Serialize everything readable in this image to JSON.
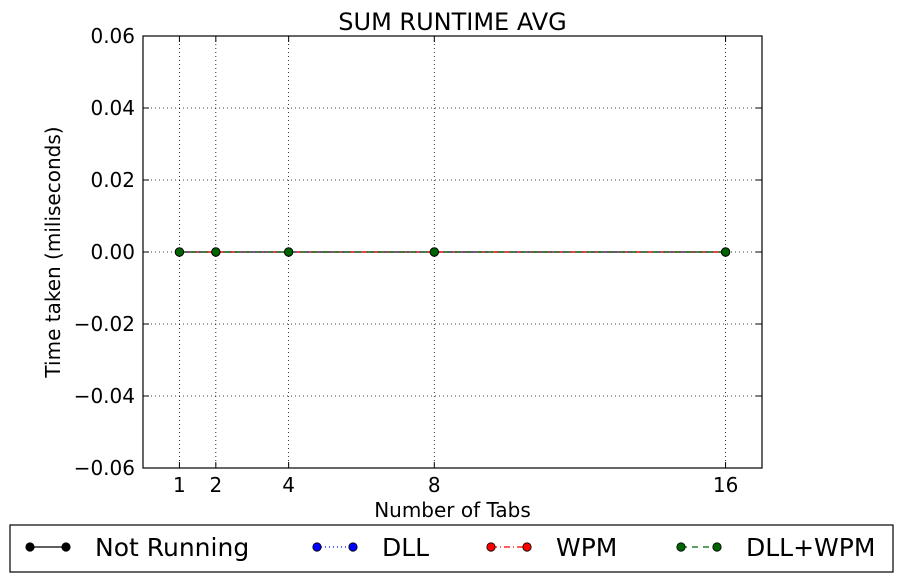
{
  "chart_data": {
    "type": "line",
    "title": "SUM RUNTIME AVG",
    "xlabel": "Number of Tabs",
    "ylabel": "Time taken (miliseconds)",
    "x": [
      1,
      2,
      4,
      8,
      16
    ],
    "xlim": [
      0,
      17
    ],
    "xticks": [
      1,
      2,
      4,
      8,
      16
    ],
    "ylim": [
      -0.06,
      0.06
    ],
    "yticks": [
      0.06,
      0.04,
      0.02,
      0.0,
      -0.02,
      -0.04,
      -0.06
    ],
    "ytick_labels": [
      "0.06",
      "0.04",
      "0.02",
      "0.00",
      "−0.02",
      "−0.04",
      "−0.06"
    ],
    "grid": true,
    "legend_position": "bottom, outside",
    "series": [
      {
        "name": "Not Running",
        "values": [
          0,
          0,
          0,
          0,
          0
        ],
        "color": "#000000",
        "dash": "solid"
      },
      {
        "name": "DLL",
        "values": [
          0,
          0,
          0,
          0,
          0
        ],
        "color": "#0000ff",
        "dash": "dotted"
      },
      {
        "name": "WPM",
        "values": [
          0,
          0,
          0,
          0,
          0
        ],
        "color": "#ff0000",
        "dash": "dashdot"
      },
      {
        "name": "DLL+WPM",
        "values": [
          0,
          0,
          0,
          0,
          0
        ],
        "color": "#006400",
        "dash": "dashed"
      }
    ]
  }
}
